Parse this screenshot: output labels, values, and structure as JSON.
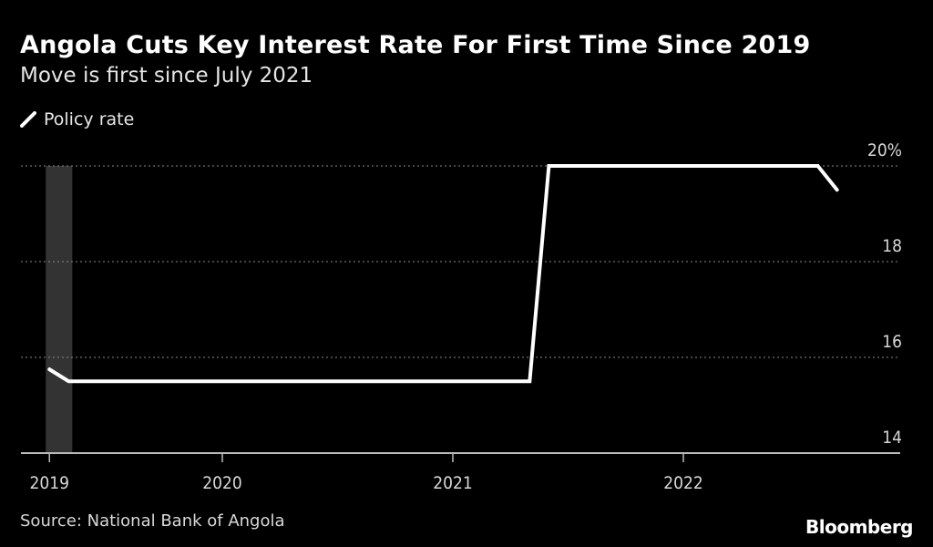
{
  "header": {
    "title": "Angola Cuts Key Interest Rate For First Time Since 2019",
    "subtitle": "Move is first since July 2021"
  },
  "footer": {
    "source": "Source: National Bank of Angola",
    "logo": "Bloomberg"
  },
  "chart_data": {
    "type": "line",
    "title": "Angola Cuts Key Interest Rate For First Time Since 2019",
    "subtitle": "Move is first since July 2021",
    "xlabel": "",
    "ylabel": "",
    "ylim": [
      14,
      20
    ],
    "y_ticks": [
      {
        "value": 20,
        "label": "20%"
      },
      {
        "value": 18,
        "label": "18"
      },
      {
        "value": 16,
        "label": "16"
      },
      {
        "value": 14,
        "label": "14"
      }
    ],
    "x_ticks": [
      {
        "value": "2019-04",
        "label": "2019"
      },
      {
        "value": "2020-01",
        "label": "2020"
      },
      {
        "value": "2021-01",
        "label": "2021"
      },
      {
        "value": "2022-01",
        "label": "2022"
      }
    ],
    "grid": true,
    "legend_position": "top-left",
    "shaded_period": {
      "start": "2019-04",
      "end": "2019-05",
      "color": "#333333"
    },
    "series": [
      {
        "name": "Policy rate",
        "color": "#ffffff",
        "points": [
          {
            "x": "2019-04",
            "y": 15.75
          },
          {
            "x": "2019-05",
            "y": 15.5
          },
          {
            "x": "2021-05",
            "y": 15.5
          },
          {
            "x": "2021-06",
            "y": 20
          },
          {
            "x": "2022-08",
            "y": 20
          },
          {
            "x": "2022-09",
            "y": 19.5
          }
        ]
      }
    ]
  }
}
